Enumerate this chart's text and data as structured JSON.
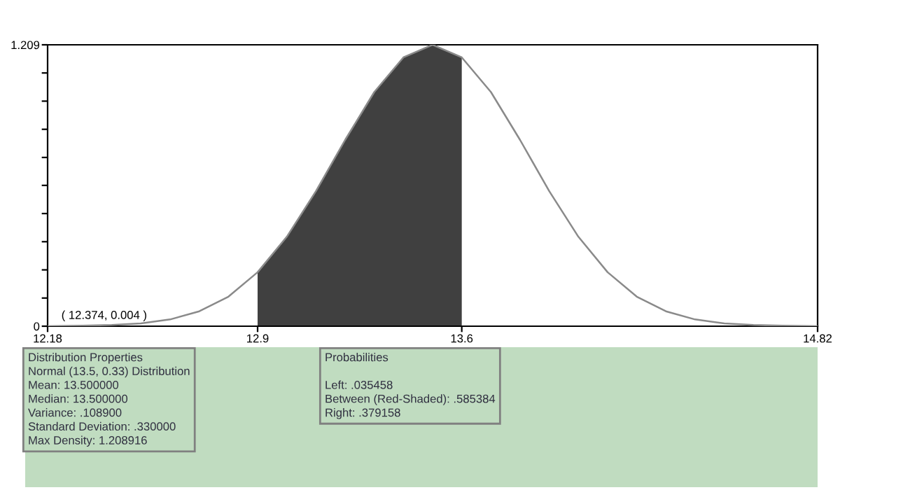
{
  "chart_data": {
    "type": "line",
    "series": [
      {
        "type": "area",
        "color": "#404040",
        "x": [
          12.9,
          13.0,
          13.1,
          13.2,
          13.3,
          13.4,
          13.5,
          13.6
        ],
        "values": [
          0.232,
          0.384,
          0.58,
          0.8,
          1.006,
          1.155,
          1.209,
          1.155
        ]
      },
      {
        "color": "#8a8a8a",
        "x": [
          12.18,
          12.3,
          12.4,
          12.5,
          12.6,
          12.7,
          12.8,
          12.9,
          13.0,
          13.1,
          13.2,
          13.3,
          13.4,
          13.5,
          13.6,
          13.7,
          13.8,
          13.9,
          14.0,
          14.1,
          14.2,
          14.3,
          14.4,
          14.5,
          14.6,
          14.7,
          14.82
        ],
        "values": [
          0.0,
          0.002,
          0.005,
          0.012,
          0.029,
          0.064,
          0.127,
          0.232,
          0.384,
          0.58,
          0.8,
          1.006,
          1.155,
          1.209,
          1.155,
          1.006,
          0.8,
          0.58,
          0.384,
          0.232,
          0.127,
          0.064,
          0.029,
          0.012,
          0.005,
          0.002,
          0.0
        ]
      }
    ],
    "xlim": [
      12.18,
      14.82
    ],
    "xticks": [
      12.18,
      12.9,
      13.6,
      14.82
    ],
    "ylim": [
      0,
      1.209
    ],
    "yticks": [
      0,
      {
        "value": 0.121,
        "label": null
      },
      {
        "value": 0.242,
        "label": null
      },
      {
        "value": 0.363,
        "label": null
      },
      {
        "value": 0.484,
        "label": null
      },
      {
        "value": 0.605,
        "label": null
      },
      {
        "value": 0.725,
        "label": null
      },
      {
        "value": 0.846,
        "label": null
      },
      {
        "value": 0.967,
        "label": null
      },
      {
        "value": 1.088,
        "label": null
      },
      1.209
    ],
    "grid": false,
    "line_style": "solid",
    "marker": "none",
    "annotations": [
      {
        "text": "( 12.374, 0.004 )",
        "x": 12.374,
        "y": 0.004
      },
      "Distribution Properties\nNormal (13.5, 0.33) Distribution\nMean: 13.500000\nMedian: 13.500000\nVariance: .108900\nStandard Deviation: .330000\nMax Density: 1.208916",
      "Probabilities\n\nLeft: .035458\nBetween (Red-Shaded): .585384\nRight: .379158"
    ]
  }
}
